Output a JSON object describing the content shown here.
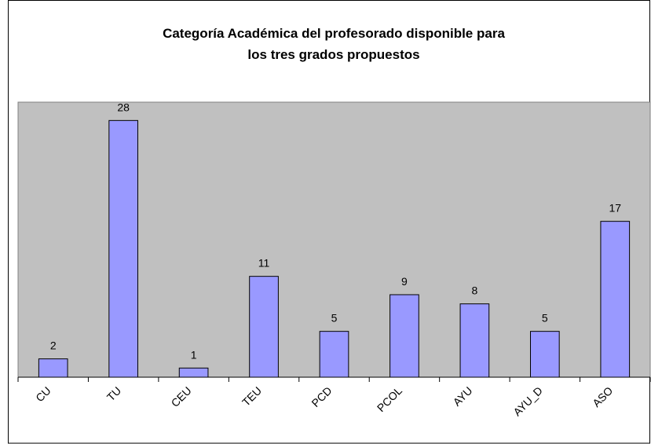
{
  "chart_data": {
    "type": "bar",
    "title": [
      "Categoría Académica del profesorado disponible para",
      "los tres grados propuestos"
    ],
    "categories": [
      "CU",
      "TU",
      "CEU",
      "TEU",
      "PCD",
      "PCOL",
      "AYU",
      "AYU_D",
      "ASO"
    ],
    "values": [
      2,
      28,
      1,
      11,
      5,
      9,
      8,
      5,
      17
    ],
    "color": "#9999ff",
    "ylim": [
      0,
      30
    ]
  }
}
